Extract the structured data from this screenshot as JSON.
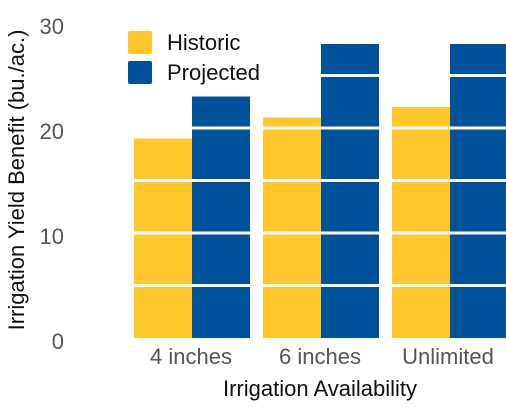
{
  "chart_data": {
    "type": "bar",
    "title": "",
    "xlabel": "Irrigation Availability",
    "ylabel": "Irrigation Yield Benefit (bu./ac.)",
    "categories": [
      "4 inches",
      "6 inches",
      "Unlimited"
    ],
    "series": [
      {
        "name": "Historic",
        "color": "#FFC72C",
        "values": [
          19,
          21,
          22
        ]
      },
      {
        "name": "Projected",
        "color": "#00529B",
        "values": [
          23,
          28,
          28
        ]
      }
    ],
    "ylim": [
      0,
      30
    ],
    "yticks": [
      0,
      10,
      20,
      30
    ],
    "gridlines": [
      5,
      10,
      15,
      20,
      25
    ],
    "grid_color": "#ffffff",
    "legend_position": "top-left",
    "grid": false
  }
}
